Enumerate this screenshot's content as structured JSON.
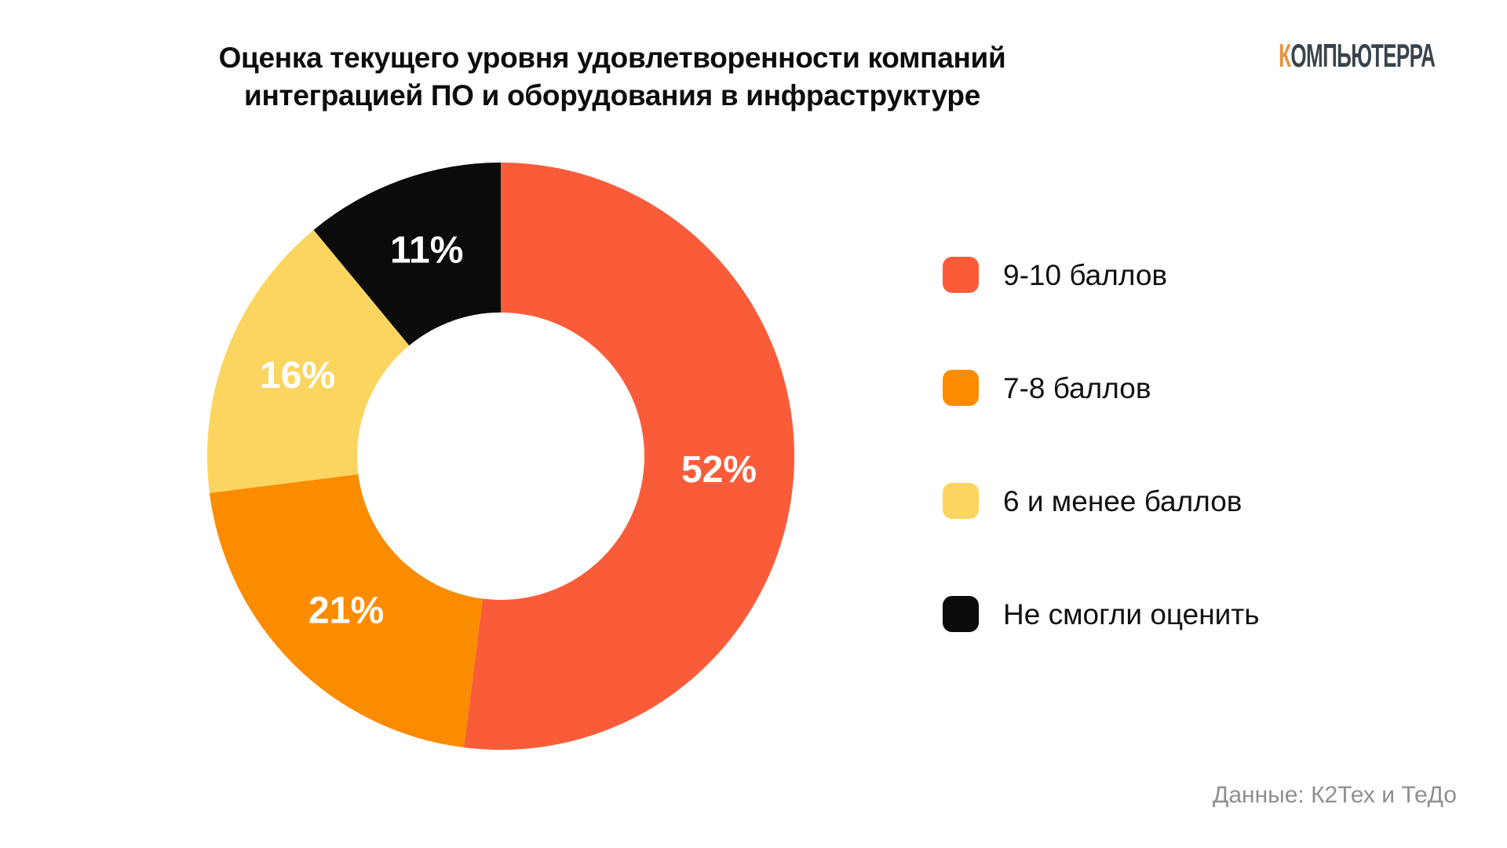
{
  "header": {
    "title_line1": "Оценка текущего уровня удовлетворенности компаний",
    "title_line2": "интеграцией ПО и оборудования в инфраструктуре",
    "logo_first_letter": "К",
    "logo_rest": "ОМПЬЮТЕРРА"
  },
  "chart_data": {
    "type": "pie",
    "variant": "donut",
    "title": "Оценка текущего уровня удовлетворенности компаний интеграцией ПО и оборудования в инфраструктуре",
    "unit": "%",
    "start_angle_deg": 0,
    "direction": "clockwise",
    "inner_radius_ratio": 0.49,
    "legend_position": "right",
    "value_label_color": "#FFFFFF",
    "slices": [
      {
        "label": "9-10 баллов",
        "value": 52,
        "display_value": "52%",
        "color": "#FA5C3A"
      },
      {
        "label": "7-8 баллов",
        "value": 21,
        "display_value": "21%",
        "color": "#FB8C00"
      },
      {
        "label": "6 и менее баллов",
        "value": 16,
        "display_value": "16%",
        "color": "#FBD55F"
      },
      {
        "label": "Не смогли оценить",
        "value": 11,
        "display_value": "11%",
        "color": "#0B0B0B"
      }
    ]
  },
  "footer": {
    "source": "Данные: К2Тех и ТеДо"
  },
  "colors": {
    "background": "#FFFFFF",
    "title_text": "#0D0D0D",
    "legend_text": "#111111",
    "source_text": "#8F8F8F",
    "logo_accent": "#E8923E",
    "logo_dark": "#3A444D"
  }
}
